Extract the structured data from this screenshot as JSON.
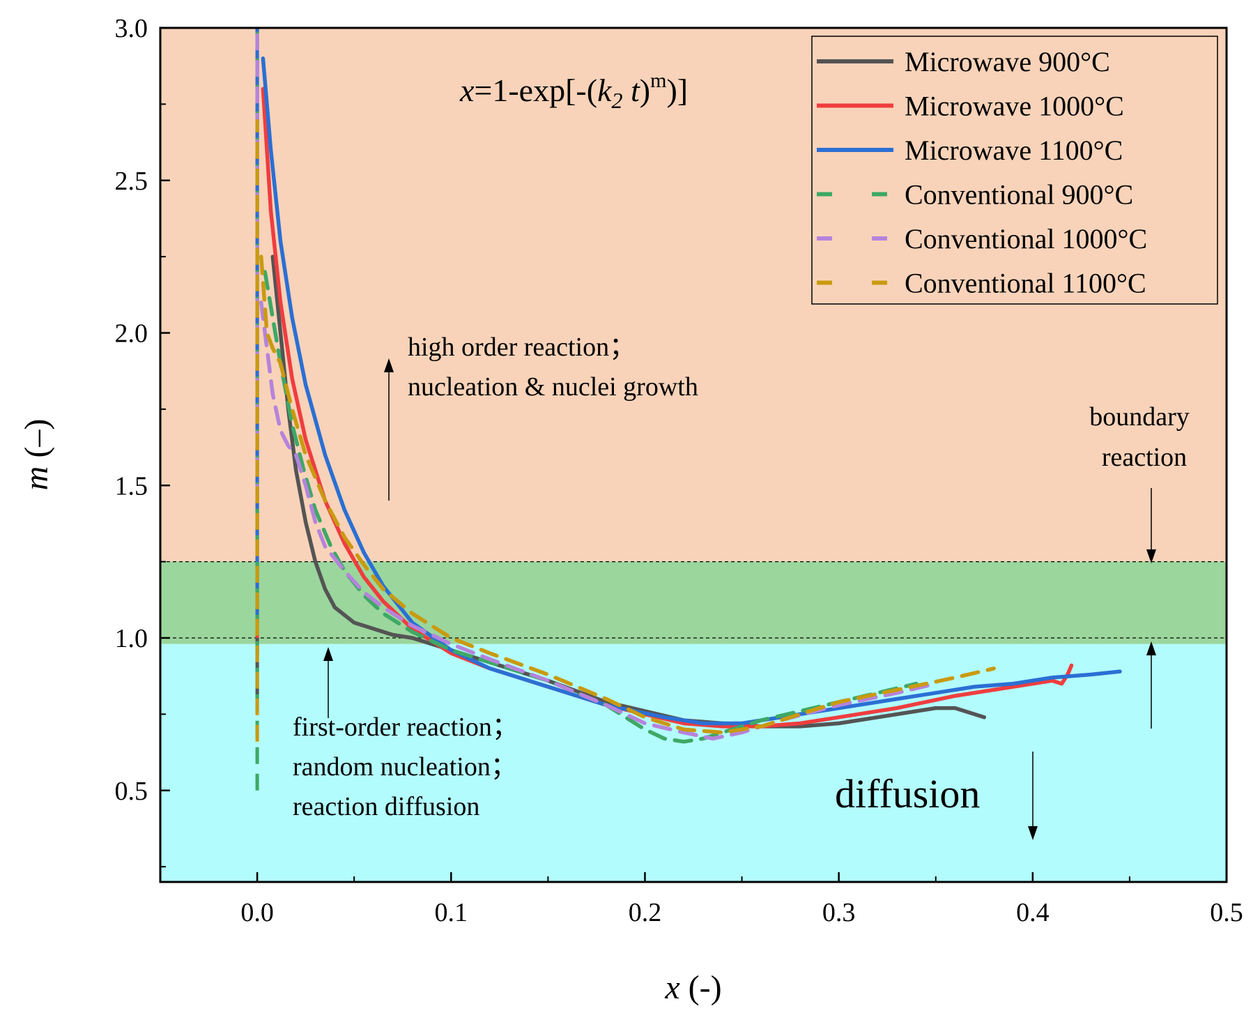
{
  "chart_data": {
    "type": "line",
    "xlabel": "x (-)",
    "xlabel_var": "x",
    "xlabel_unit": " (-)",
    "ylabel": "m (–)",
    "ylabel_var": "m",
    "ylabel_unit": " (–)",
    "xlim": [
      -0.05,
      0.5
    ],
    "ylim": [
      0.2,
      3.0
    ],
    "x_ticks": [
      0.0,
      0.1,
      0.2,
      0.3,
      0.4,
      0.5
    ],
    "x_tick_labels": [
      "0.0",
      "0.1",
      "0.2",
      "0.3",
      "0.4",
      "0.5"
    ],
    "y_ticks": [
      0.5,
      1.0,
      1.5,
      2.0,
      2.5,
      3.0
    ],
    "y_tick_labels": [
      "0.5",
      "1.0",
      "1.5",
      "2.0",
      "2.5",
      "3.0"
    ],
    "legend_position": "top-right",
    "equation": {
      "x": "x",
      "mid": "=1-exp[-(",
      "k": "k",
      "sub": "2",
      "t": " t",
      "close": ")",
      "sup": "m",
      "end": ")]"
    },
    "regions": [
      {
        "name": "high-order",
        "y_from": 1.25,
        "y_to": 3.0,
        "color": "#f8d3b9"
      },
      {
        "name": "first-order",
        "y_from": 0.98,
        "y_to": 1.25,
        "color": "#9bd69d"
      },
      {
        "name": "diffusion",
        "y_from": 0.2,
        "y_to": 0.98,
        "color": "#b3fcfe"
      }
    ],
    "boundary_lines": [
      1.25,
      1.0
    ],
    "annotations": {
      "high_order_1": "high order reaction；",
      "high_order_2": "nucleation & nuclei growth",
      "boundary_1": "boundary",
      "boundary_2": "reaction",
      "first_order_1": "first-order reaction；",
      "first_order_2": "random nucleation；",
      "first_order_3": "reaction diffusion",
      "diffusion": "diffusion"
    },
    "series": [
      {
        "name": "Microwave 900°C",
        "color": "#545454",
        "style": "solid",
        "x": [
          0.008,
          0.012,
          0.016,
          0.02,
          0.025,
          0.03,
          0.035,
          0.04,
          0.05,
          0.06,
          0.07,
          0.08,
          0.09,
          0.1,
          0.12,
          0.15,
          0.18,
          0.2,
          0.22,
          0.24,
          0.26,
          0.28,
          0.3,
          0.32,
          0.34,
          0.35,
          0.36,
          0.375
        ],
        "y": [
          2.25,
          2.0,
          1.75,
          1.55,
          1.38,
          1.25,
          1.16,
          1.1,
          1.05,
          1.03,
          1.01,
          1.0,
          0.98,
          0.96,
          0.92,
          0.86,
          0.79,
          0.76,
          0.73,
          0.72,
          0.71,
          0.71,
          0.72,
          0.74,
          0.76,
          0.77,
          0.77,
          0.74
        ]
      },
      {
        "name": "Microwave 1000°C",
        "color": "#ef3d3f",
        "style": "solid",
        "x": [
          0.003,
          0.007,
          0.012,
          0.018,
          0.025,
          0.035,
          0.045,
          0.055,
          0.065,
          0.08,
          0.09,
          0.1,
          0.12,
          0.15,
          0.18,
          0.2,
          0.22,
          0.24,
          0.26,
          0.28,
          0.3,
          0.33,
          0.36,
          0.39,
          0.41,
          0.415,
          0.418,
          0.42
        ],
        "y": [
          2.8,
          2.4,
          2.1,
          1.85,
          1.65,
          1.45,
          1.31,
          1.2,
          1.12,
          1.03,
          0.99,
          0.95,
          0.9,
          0.84,
          0.78,
          0.75,
          0.72,
          0.71,
          0.71,
          0.72,
          0.74,
          0.77,
          0.81,
          0.84,
          0.86,
          0.85,
          0.88,
          0.91
        ]
      },
      {
        "name": "Microwave 1100°C",
        "color": "#2b6fd4",
        "style": "solid",
        "x": [
          0.003,
          0.007,
          0.012,
          0.018,
          0.025,
          0.035,
          0.045,
          0.055,
          0.065,
          0.08,
          0.1,
          0.12,
          0.15,
          0.18,
          0.21,
          0.23,
          0.25,
          0.27,
          0.29,
          0.31,
          0.33,
          0.35,
          0.37,
          0.39,
          0.41,
          0.43,
          0.445
        ],
        "y": [
          2.9,
          2.6,
          2.3,
          2.05,
          1.83,
          1.6,
          1.42,
          1.28,
          1.17,
          1.05,
          0.96,
          0.9,
          0.84,
          0.78,
          0.74,
          0.72,
          0.72,
          0.74,
          0.76,
          0.78,
          0.8,
          0.82,
          0.84,
          0.85,
          0.87,
          0.88,
          0.89
        ]
      },
      {
        "name": "Conventional 900°C",
        "color": "#3ea865",
        "style": "dashed",
        "x": [
          0.004,
          0.008,
          0.012,
          0.018,
          0.024,
          0.03,
          0.038,
          0.045,
          0.055,
          0.065,
          0.08,
          0.1,
          0.12,
          0.15,
          0.18,
          0.2,
          0.21,
          0.22,
          0.23,
          0.24,
          0.26,
          0.28,
          0.3,
          0.32,
          0.34
        ],
        "y": [
          2.2,
          2.05,
          1.9,
          1.7,
          1.55,
          1.42,
          1.3,
          1.22,
          1.14,
          1.08,
          1.02,
          0.96,
          0.92,
          0.86,
          0.78,
          0.7,
          0.67,
          0.66,
          0.67,
          0.69,
          0.73,
          0.76,
          0.79,
          0.82,
          0.85
        ]
      },
      {
        "name": "Conventional 1000°C",
        "color": "#b583dc",
        "style": "dashed",
        "x": [
          0.002,
          0.005,
          0.008,
          0.012,
          0.016,
          0.02,
          0.025,
          0.03,
          0.035,
          0.045,
          0.055,
          0.065,
          0.08,
          0.1,
          0.12,
          0.15,
          0.18,
          0.2,
          0.22,
          0.235,
          0.25,
          0.27,
          0.3,
          0.33,
          0.35
        ],
        "y": [
          2.1,
          1.95,
          1.8,
          1.68,
          1.63,
          1.6,
          1.5,
          1.38,
          1.3,
          1.22,
          1.15,
          1.1,
          1.04,
          0.98,
          0.93,
          0.86,
          0.78,
          0.72,
          0.69,
          0.67,
          0.69,
          0.73,
          0.78,
          0.82,
          0.85
        ]
      },
      {
        "name": "Conventional 1100°C",
        "color": "#c99a10",
        "style": "dashed",
        "x": [
          0.002,
          0.005,
          0.008,
          0.012,
          0.018,
          0.025,
          0.035,
          0.045,
          0.055,
          0.065,
          0.08,
          0.1,
          0.12,
          0.15,
          0.18,
          0.2,
          0.22,
          0.24,
          0.26,
          0.28,
          0.3,
          0.33,
          0.36,
          0.38
        ],
        "y": [
          2.25,
          2.0,
          1.95,
          1.9,
          1.75,
          1.6,
          1.45,
          1.33,
          1.24,
          1.16,
          1.08,
          1.0,
          0.95,
          0.88,
          0.8,
          0.74,
          0.7,
          0.69,
          0.71,
          0.75,
          0.79,
          0.83,
          0.87,
          0.9
        ]
      }
    ],
    "vertical_series": [
      {
        "color": "#ef3d3f",
        "style": "solid",
        "y_from": 0.95,
        "y_to": 3.0
      },
      {
        "color": "#2b6fd4",
        "style": "solid",
        "y_from": 1.05,
        "y_to": 3.0
      },
      {
        "color": "#545454",
        "style": "solid",
        "y_from": 0.8,
        "y_to": 1.0
      },
      {
        "color": "#3ea865",
        "style": "dashed",
        "y_from": 0.5,
        "y_to": 3.0
      },
      {
        "color": "#b583dc",
        "style": "dashed",
        "y_from": 1.45,
        "y_to": 3.0
      },
      {
        "color": "#c99a10",
        "style": "dashed",
        "y_from": 0.66,
        "y_to": 2.7
      }
    ]
  }
}
